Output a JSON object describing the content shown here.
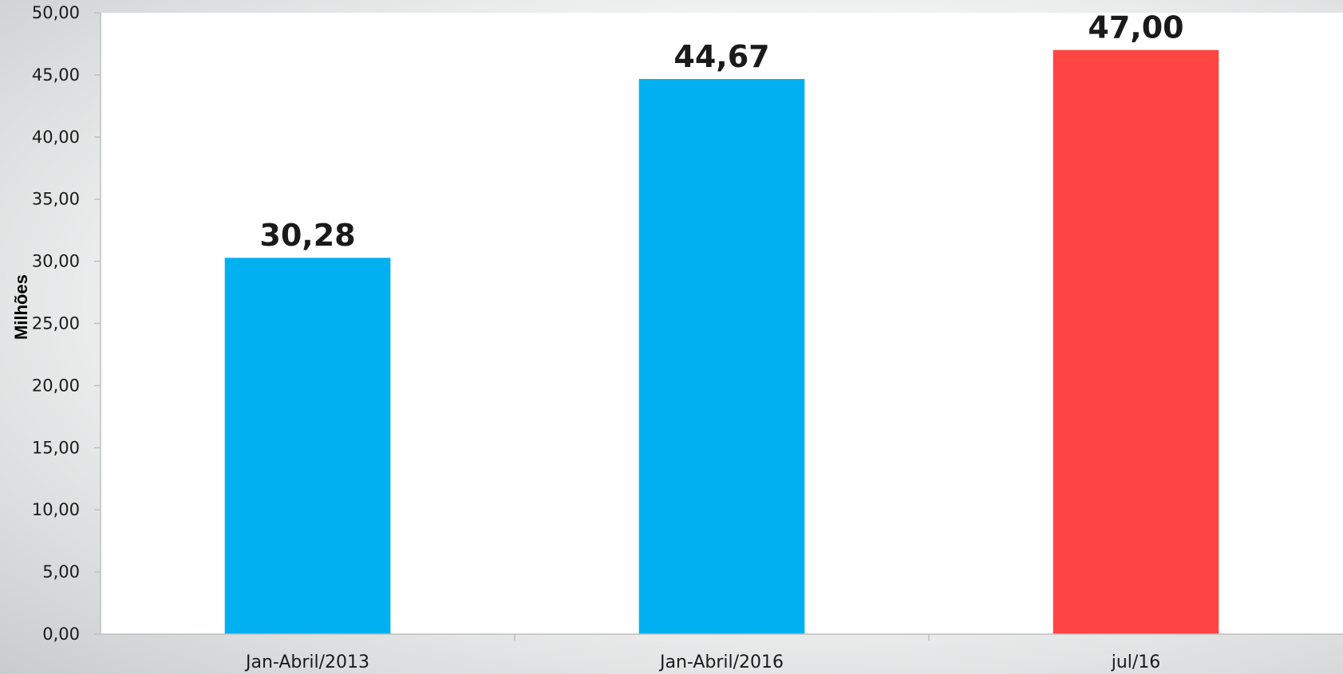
{
  "chart_data": {
    "type": "bar",
    "title": "",
    "xlabel": "",
    "ylabel": "Milhões",
    "ylim": [
      0,
      50
    ],
    "yticks": [
      "0,00",
      "5,00",
      "10,00",
      "15,00",
      "20,00",
      "25,00",
      "30,00",
      "35,00",
      "40,00",
      "45,00",
      "50,00"
    ],
    "ytick_values": [
      0,
      5,
      10,
      15,
      20,
      25,
      30,
      35,
      40,
      45,
      50
    ],
    "categories": [
      "Jan-Abril/2013",
      "Jan-Abril/2016",
      "jul/16"
    ],
    "values": [
      30.28,
      44.67,
      47.0
    ],
    "data_labels": [
      "30,28",
      "44,67",
      "47,00"
    ],
    "bar_colors": [
      "#00b0f0",
      "#00b0f0",
      "#ff4444"
    ],
    "grid": false,
    "legend": "none"
  }
}
